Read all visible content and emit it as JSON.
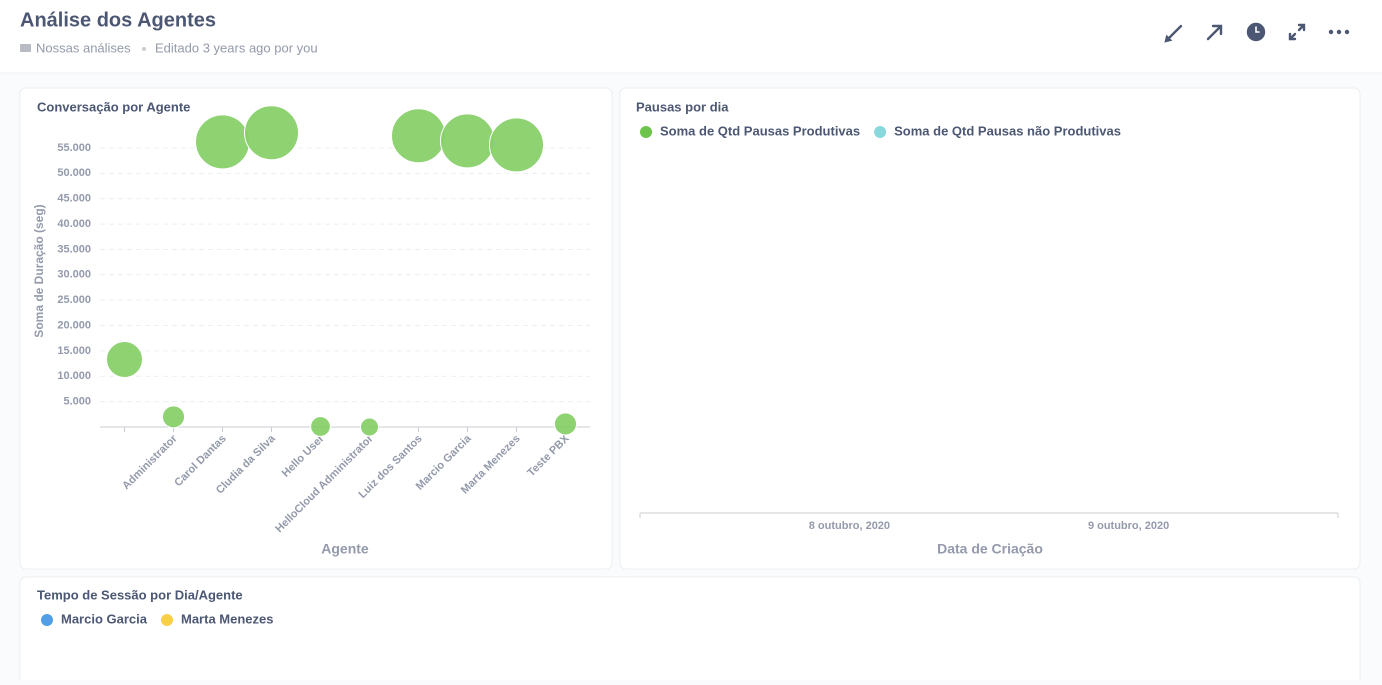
{
  "header": {
    "title": "Análise dos Agentes",
    "collection": "Nossas análises",
    "edited": "Editado 3 years ago por you"
  },
  "chart_data": [
    {
      "type": "bubble",
      "title": "Conversação por Agente",
      "x_label": "Agente",
      "y_label": "Soma de Duração (seg)",
      "categories": [
        null,
        "Administrator",
        "Carol Dantas",
        "Cludia da Silva",
        "Hello User",
        "HelloCloud Administrator",
        "Luiz dos Santos",
        "Marcio Garcia",
        "Marta Menezes",
        "Teste PBX"
      ],
      "values": [
        13300,
        2000,
        56200,
        58000,
        100,
        0,
        57400,
        56400,
        55600,
        600
      ],
      "sizes": [
        40,
        15,
        90,
        90,
        12,
        10,
        90,
        90,
        90,
        15
      ],
      "color": "#88d06a",
      "ylim": [
        0,
        61500
      ],
      "yticks": [
        {
          "value": 5000,
          "label": "5.000"
        },
        {
          "value": 10000,
          "label": "10.000"
        },
        {
          "value": 15000,
          "label": "15.000"
        },
        {
          "value": 20000,
          "label": "20.000"
        },
        {
          "value": 25000,
          "label": "25.000"
        },
        {
          "value": 30000,
          "label": "30.000"
        },
        {
          "value": 35000,
          "label": "35.000"
        },
        {
          "value": 40000,
          "label": "40.000"
        },
        {
          "value": 45000,
          "label": "45.000"
        },
        {
          "value": 50000,
          "label": "50.000"
        },
        {
          "value": 55000,
          "label": "55.000"
        }
      ],
      "grid": true
    },
    {
      "type": "line",
      "title": "Pausas por dia",
      "x_label": "Data de Criação",
      "categories": [
        "8 outubro, 2020",
        "9 outubro, 2020"
      ],
      "series": [
        {
          "name": "Soma de Qtd Pausas Produtivas",
          "color": "#6dc44a",
          "values": [
            null,
            null
          ]
        },
        {
          "name": "Soma de Qtd Pausas não Produtivas",
          "color": "#88d8dc",
          "values": [
            null,
            null
          ]
        }
      ],
      "legend": "top-left"
    },
    {
      "type": "line",
      "title": "Tempo de Sessão por Dia/Agente",
      "series": [
        {
          "name": "Marcio Garcia",
          "color": "#509ee3",
          "values": []
        },
        {
          "name": "Marta Menezes",
          "color": "#f9cf48",
          "values": []
        }
      ],
      "legend": "top-left"
    }
  ]
}
